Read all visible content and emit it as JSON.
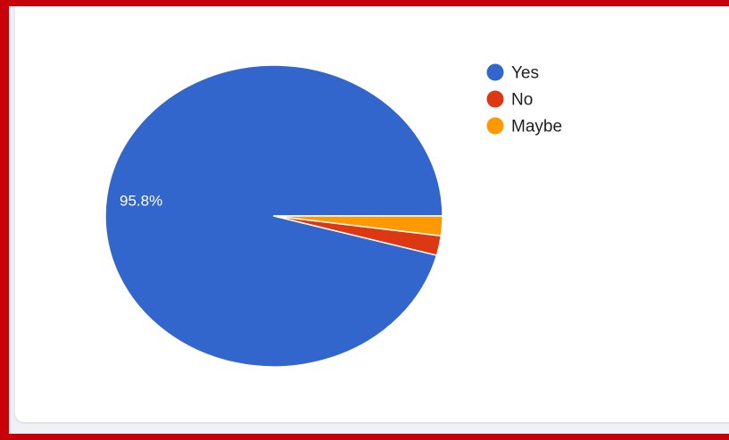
{
  "chart_data": {
    "type": "pie",
    "categories": [
      "Yes",
      "No",
      "Maybe"
    ],
    "values": [
      95.8,
      2.1,
      2.1
    ],
    "colors": [
      "#3366cc",
      "#dc3912",
      "#ff9900"
    ],
    "slice_labels": [
      "95.8%",
      "",
      ""
    ],
    "legend": {
      "position": "right",
      "items": [
        {
          "label": "Yes",
          "color": "#3366cc"
        },
        {
          "label": "No",
          "color": "#dc3912"
        },
        {
          "label": "Maybe",
          "color": "#ff9900"
        }
      ]
    },
    "start_angle_deg": 0,
    "direction": "counterclockwise"
  },
  "frame_color": "#c8000a"
}
